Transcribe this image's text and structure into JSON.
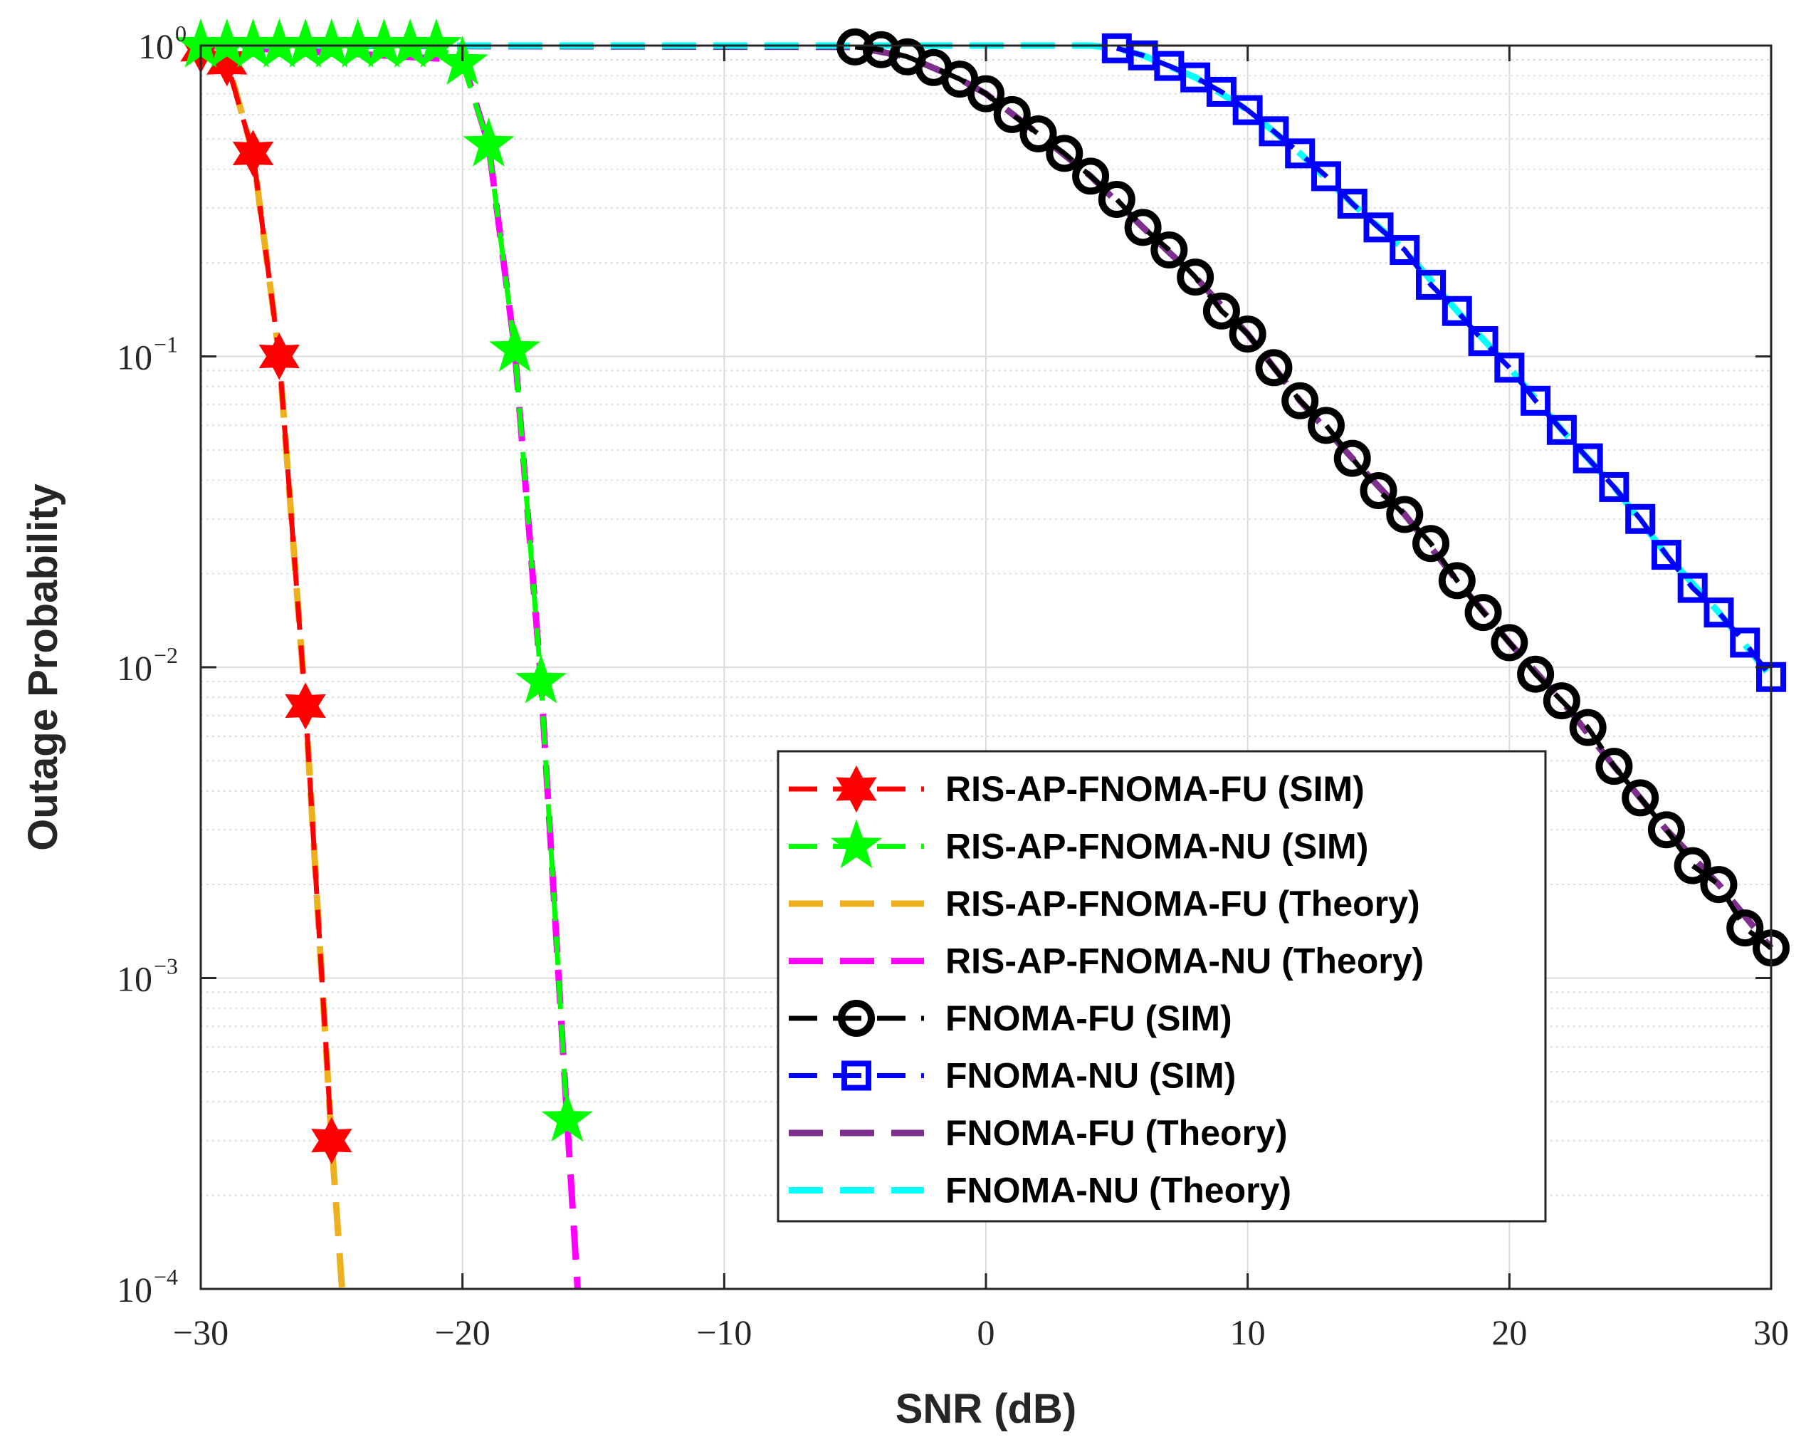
{
  "chart_data": {
    "type": "line",
    "xlabel": "SNR (dB)",
    "ylabel": "Outage Probability",
    "xlim": [
      -30,
      30
    ],
    "ylim": [
      0.0001,
      1
    ],
    "yscale": "log",
    "grid": true,
    "legend_position": "center-right",
    "x_ticks": [
      -30,
      -20,
      -10,
      0,
      10,
      20,
      30
    ],
    "x_tick_labels": [
      "−30",
      "−20",
      "−10",
      "0",
      "10",
      "20",
      "30"
    ],
    "y_ticks": [
      {
        "value": 1,
        "base": "10",
        "exp": "0"
      },
      {
        "value": 0.1,
        "base": "10",
        "exp": "−1"
      },
      {
        "value": 0.01,
        "base": "10",
        "exp": "−2"
      },
      {
        "value": 0.001,
        "base": "10",
        "exp": "−3"
      },
      {
        "value": 0.0001,
        "base": "10",
        "exp": "−4"
      }
    ],
    "series": [
      {
        "name": "RIS-AP-FNOMA-FU (SIM)",
        "color": "#ff0000",
        "dash": true,
        "marker": "hexagram",
        "x": [
          -30,
          -29,
          -28,
          -27,
          -26,
          -25
        ],
        "y": [
          0.97,
          0.88,
          0.45,
          0.1,
          0.0075,
          0.0003
        ]
      },
      {
        "name": "RIS-AP-FNOMA-NU (SIM)",
        "color": "#00ff00",
        "dash": true,
        "marker": "pentagram",
        "x": [
          -30,
          -29,
          -28,
          -27,
          -26,
          -25,
          -24,
          -23,
          -22,
          -21,
          -20,
          -19,
          -18,
          -17,
          -16
        ],
        "y": [
          1,
          1,
          1,
          1,
          1,
          1,
          1,
          1,
          1,
          1,
          0.88,
          0.48,
          0.105,
          0.009,
          0.00035
        ]
      },
      {
        "name": "RIS-AP-FNOMA-FU (Theory)",
        "color": "#edb120",
        "dash": true,
        "marker": "none",
        "x": [
          -30,
          -29,
          -28,
          -27,
          -26,
          -25,
          -24.6
        ],
        "y": [
          1,
          0.9,
          0.45,
          0.1,
          0.0075,
          0.0003,
          0.0001
        ]
      },
      {
        "name": "RIS-AP-FNOMA-NU (Theory)",
        "color": "#ff00ff",
        "dash": true,
        "marker": "none",
        "x": [
          -30,
          -20,
          -19,
          -18,
          -17,
          -16,
          -15.6
        ],
        "y": [
          1,
          0.9,
          0.48,
          0.105,
          0.009,
          0.00035,
          0.0001
        ]
      },
      {
        "name": "FNOMA-FU (SIM)",
        "color": "#000000",
        "dash": true,
        "marker": "circle",
        "x": [
          -5,
          -4,
          -3,
          -2,
          -1,
          0,
          1,
          2,
          3,
          4,
          5,
          6,
          7,
          8,
          9,
          10,
          11,
          12,
          13,
          14,
          15,
          16,
          17,
          18,
          19,
          20,
          21,
          22,
          23,
          24,
          25,
          26,
          27,
          28,
          29,
          30
        ],
        "y": [
          0.99,
          0.97,
          0.92,
          0.85,
          0.78,
          0.7,
          0.6,
          0.52,
          0.45,
          0.38,
          0.32,
          0.26,
          0.22,
          0.18,
          0.14,
          0.118,
          0.092,
          0.072,
          0.06,
          0.047,
          0.037,
          0.031,
          0.025,
          0.019,
          0.015,
          0.012,
          0.0095,
          0.0078,
          0.0064,
          0.0048,
          0.0038,
          0.003,
          0.0023,
          0.002,
          0.00145,
          0.00125
        ]
      },
      {
        "name": "FNOMA-NU (SIM)",
        "color": "#0000ff",
        "dash": true,
        "marker": "square",
        "x": [
          5,
          6,
          7,
          8,
          9,
          10,
          11,
          12,
          13,
          14,
          15,
          16,
          17,
          18,
          19,
          20,
          21,
          22,
          23,
          24,
          25,
          26,
          27,
          28,
          29,
          30
        ],
        "y": [
          0.98,
          0.93,
          0.86,
          0.79,
          0.71,
          0.62,
          0.53,
          0.45,
          0.38,
          0.31,
          0.26,
          0.22,
          0.17,
          0.14,
          0.112,
          0.092,
          0.072,
          0.058,
          0.047,
          0.038,
          0.03,
          0.023,
          0.018,
          0.015,
          0.012,
          0.0093
        ]
      },
      {
        "name": "FNOMA-FU (Theory)",
        "color": "#7e2f8e",
        "dash": true,
        "marker": "none",
        "x": [
          -30,
          -5,
          -3,
          -1,
          0,
          2,
          4,
          6,
          8,
          10,
          12,
          14,
          16,
          18,
          20,
          22,
          24,
          26,
          28,
          30
        ],
        "y": [
          1,
          0.99,
          0.92,
          0.78,
          0.7,
          0.52,
          0.38,
          0.26,
          0.18,
          0.118,
          0.072,
          0.047,
          0.031,
          0.019,
          0.012,
          0.0078,
          0.0048,
          0.003,
          0.002,
          0.00125
        ]
      },
      {
        "name": "FNOMA-NU (Theory)",
        "color": "#00ffff",
        "dash": true,
        "marker": "none",
        "x": [
          -30,
          4,
          5,
          6,
          8,
          10,
          12,
          14,
          16,
          18,
          20,
          22,
          24,
          26,
          28,
          30
        ],
        "y": [
          1,
          1,
          0.98,
          0.93,
          0.79,
          0.62,
          0.45,
          0.31,
          0.22,
          0.14,
          0.092,
          0.058,
          0.038,
          0.023,
          0.015,
          0.0093
        ]
      }
    ]
  }
}
